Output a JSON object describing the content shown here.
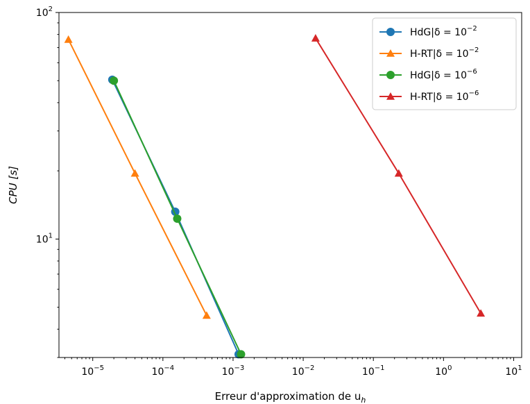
{
  "chart_data": {
    "type": "line",
    "title": "",
    "xlabel": "Erreur d'approximation de u_h",
    "ylabel": "CPU [s]",
    "xscale": "log",
    "yscale": "log",
    "xlim": [
      3.3e-06,
      13
    ],
    "ylim": [
      3.0,
      100
    ],
    "grid": false,
    "legend_position": "top-right",
    "x_ticks": [
      {
        "base": "10",
        "exp": "−5",
        "value": 1e-05
      },
      {
        "base": "10",
        "exp": "−4",
        "value": 0.0001
      },
      {
        "base": "10",
        "exp": "−3",
        "value": 0.001
      },
      {
        "base": "10",
        "exp": "−2",
        "value": 0.01
      },
      {
        "base": "10",
        "exp": "−1",
        "value": 0.1
      },
      {
        "base": "10",
        "exp": "0",
        "value": 1
      },
      {
        "base": "10",
        "exp": "1",
        "value": 10
      }
    ],
    "y_ticks": [
      {
        "base": "10",
        "exp": "1",
        "value": 10
      },
      {
        "base": "10",
        "exp": "2",
        "value": 100
      }
    ],
    "series": [
      {
        "name": "HdG|δ = 10",
        "name_exp": "−2",
        "marker": "circle",
        "color": "#1f77b4",
        "x": [
          1.9e-05,
          0.00015,
          0.0012
        ],
        "y": [
          50.5,
          13.2,
          3.1
        ]
      },
      {
        "name": "H-RT|δ = 10",
        "name_exp": "−2",
        "marker": "triangle",
        "color": "#ff7f0e",
        "x": [
          4.5e-06,
          4e-05,
          0.00042
        ],
        "y": [
          76,
          19.5,
          4.6
        ]
      },
      {
        "name": "HdG|δ = 10",
        "name_exp": "−6",
        "marker": "circle",
        "color": "#2ca02c",
        "x": [
          2e-05,
          0.00016,
          0.0013
        ],
        "y": [
          50,
          12.3,
          3.1
        ]
      },
      {
        "name": "H-RT|δ = 10",
        "name_exp": "−6",
        "marker": "triangle",
        "color": "#d62728",
        "x": [
          0.015,
          0.23,
          3.4
        ],
        "y": [
          77,
          19.5,
          4.7
        ]
      }
    ]
  }
}
